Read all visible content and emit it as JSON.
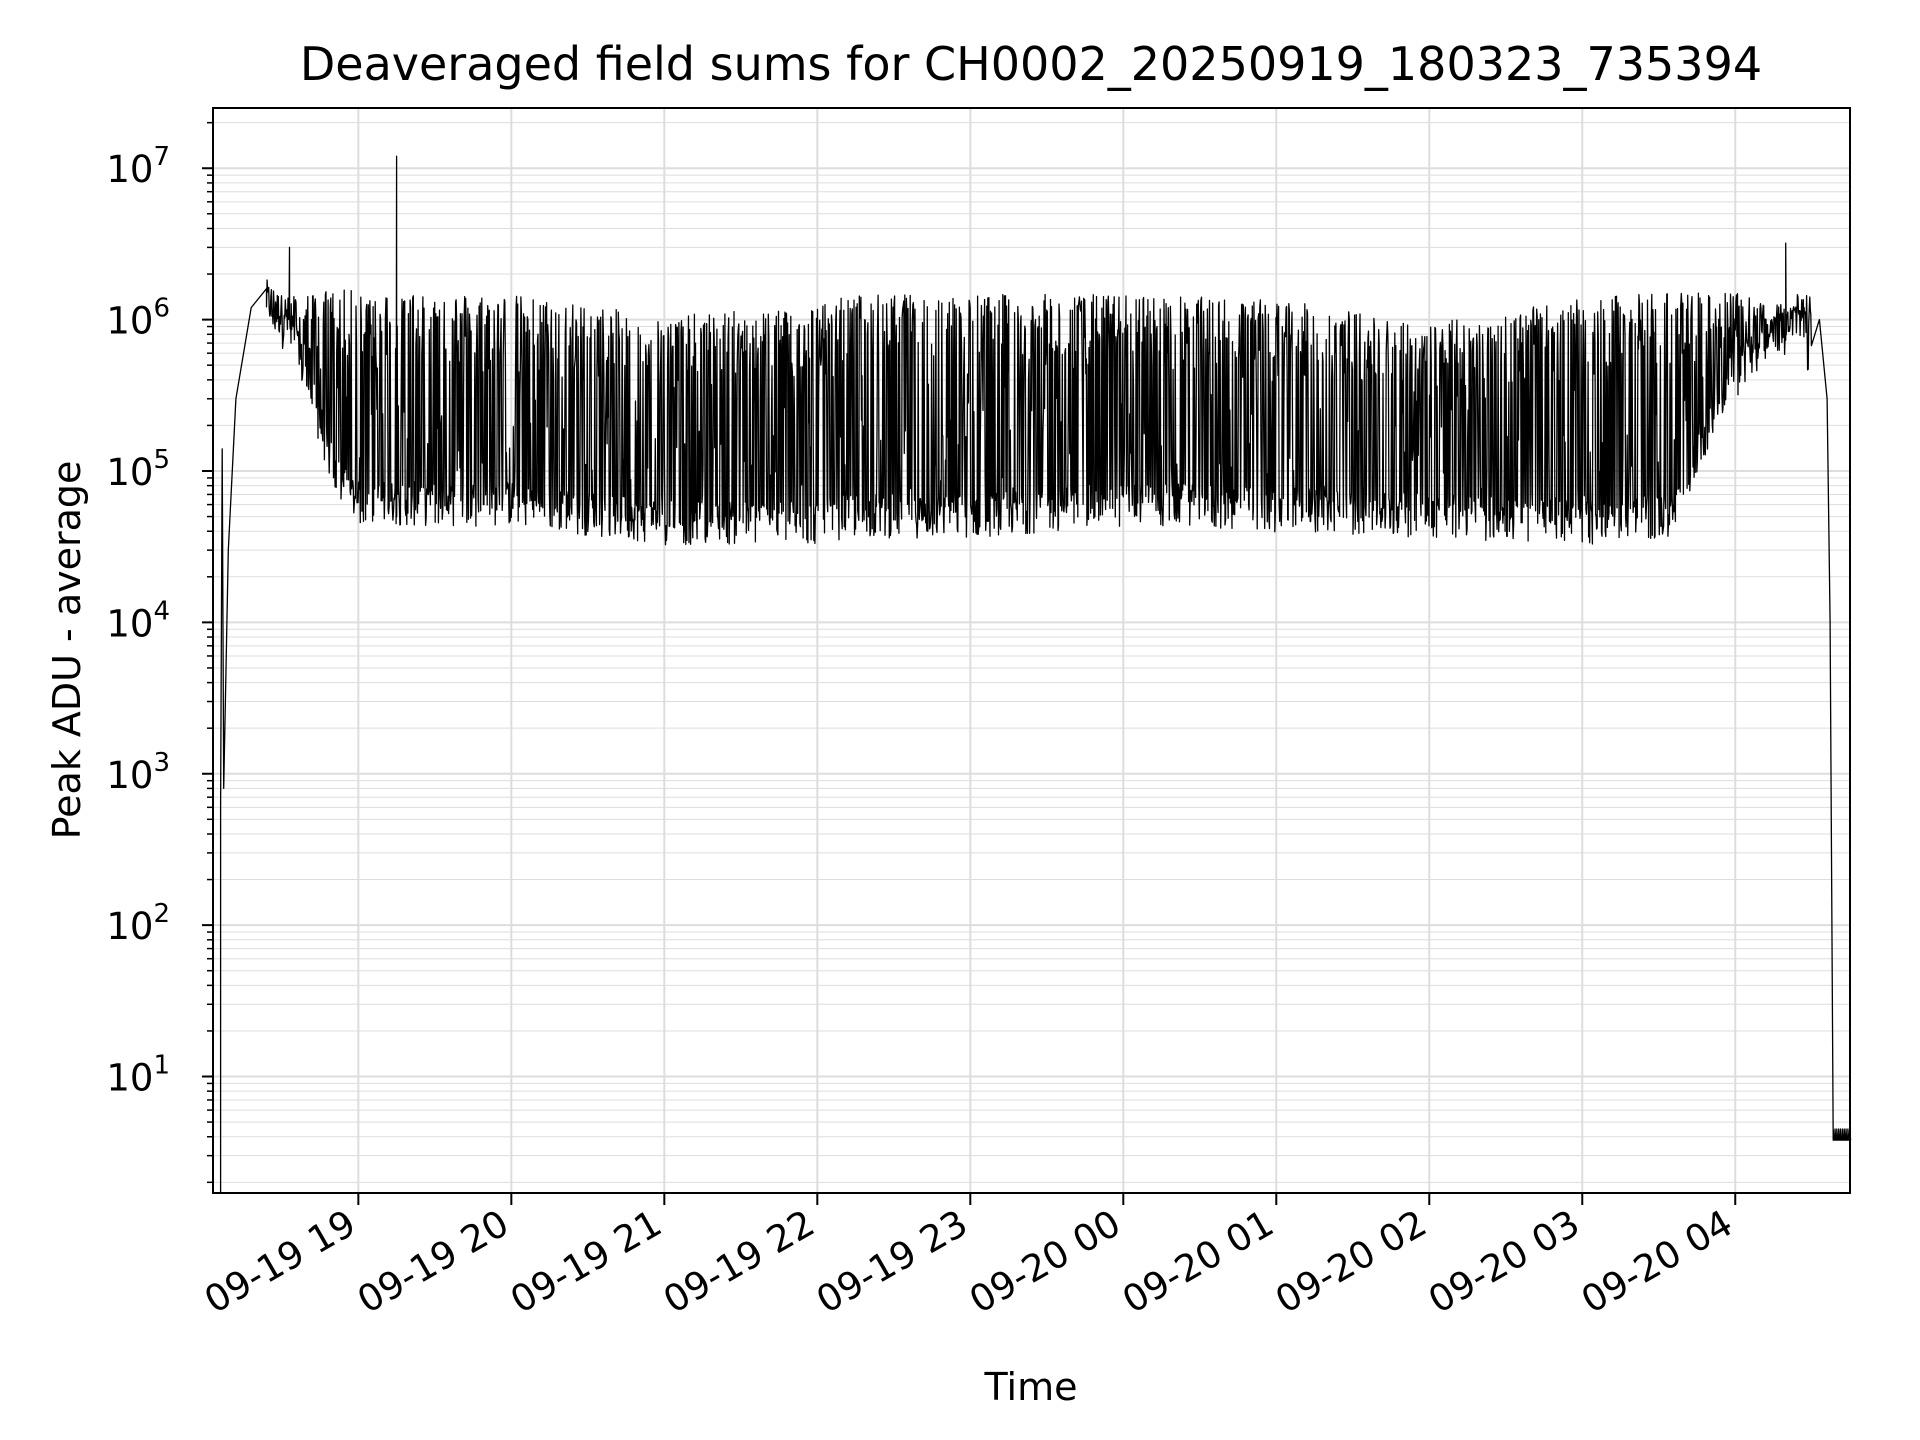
{
  "chart_data": {
    "type": "line",
    "title": "Deaveraged field sums for CH0002_20250919_180323_735394",
    "xlabel": "Time",
    "ylabel": "Peak ADU - average",
    "yscale": "log",
    "ylim": [
      1.7,
      25000000
    ],
    "xlim_hours_after_1800": [
      0.05,
      10.75
    ],
    "grid": true,
    "line_color": "#000000",
    "grid_color": "#dddddd",
    "x_ticks": [
      {
        "label": "09-19 19",
        "hours": 1
      },
      {
        "label": "09-19 20",
        "hours": 2
      },
      {
        "label": "09-19 21",
        "hours": 3
      },
      {
        "label": "09-19 22",
        "hours": 4
      },
      {
        "label": "09-19 23",
        "hours": 5
      },
      {
        "label": "09-20 00",
        "hours": 6
      },
      {
        "label": "09-20 01",
        "hours": 7
      },
      {
        "label": "09-20 02",
        "hours": 8
      },
      {
        "label": "09-20 03",
        "hours": 9
      },
      {
        "label": "09-20 04",
        "hours": 10
      }
    ],
    "y_ticks": [
      {
        "base": "10",
        "exp": "1",
        "value": 10
      },
      {
        "base": "10",
        "exp": "2",
        "value": 100
      },
      {
        "base": "10",
        "exp": "3",
        "value": 1000
      },
      {
        "base": "10",
        "exp": "4",
        "value": 10000
      },
      {
        "base": "10",
        "exp": "5",
        "value": 100000
      },
      {
        "base": "10",
        "exp": "6",
        "value": 1000000
      },
      {
        "base": "10",
        "exp": "7",
        "value": 10000000
      }
    ],
    "series": [
      {
        "name": "Peak ADU - average",
        "envelope": [
          {
            "hours": 0.4,
            "base": 1300000,
            "peak": 1600000
          },
          {
            "hours": 0.55,
            "base": 900000,
            "peak": 1400000
          },
          {
            "hours": 0.75,
            "base": 200000,
            "peak": 1500000
          },
          {
            "hours": 0.85,
            "base": 90000,
            "peak": 1500000
          },
          {
            "hours": 1.0,
            "base": 60000,
            "peak": 1500000
          },
          {
            "hours": 2.0,
            "base": 60000,
            "peak": 1400000
          },
          {
            "hours": 3.0,
            "base": 45000,
            "peak": 1000000
          },
          {
            "hours": 4.0,
            "base": 45000,
            "peak": 1200000
          },
          {
            "hours": 4.2,
            "base": 50000,
            "peak": 1400000
          },
          {
            "hours": 5.0,
            "base": 50000,
            "peak": 1400000
          },
          {
            "hours": 6.0,
            "base": 60000,
            "peak": 1400000
          },
          {
            "hours": 7.0,
            "base": 55000,
            "peak": 1300000
          },
          {
            "hours": 8.0,
            "base": 50000,
            "peak": 900000
          },
          {
            "hours": 9.0,
            "base": 45000,
            "peak": 1300000
          },
          {
            "hours": 9.6,
            "base": 50000,
            "peak": 1500000
          },
          {
            "hours": 9.9,
            "base": 300000,
            "peak": 1500000
          },
          {
            "hours": 10.35,
            "base": 1100000,
            "peak": 1200000
          },
          {
            "hours": 10.5,
            "base": 1000000,
            "peak": 1100000
          }
        ],
        "points": [
          {
            "hours": 0.1,
            "value": 1.7
          },
          {
            "hours": 0.1,
            "value": 600
          },
          {
            "hours": 0.11,
            "value": 140000
          },
          {
            "hours": 0.12,
            "value": 800
          },
          {
            "hours": 0.15,
            "value": 30000
          },
          {
            "hours": 0.2,
            "value": 300000
          },
          {
            "hours": 0.3,
            "value": 1200000
          },
          {
            "hours": 0.4,
            "value": 1600000
          },
          {
            "hours": 0.52,
            "value": 1100000
          },
          {
            "hours": 0.55,
            "value": 3000000
          },
          {
            "hours": 0.56,
            "value": 700000
          },
          {
            "hours": 1.25,
            "value": 12000000
          },
          {
            "hours": 1.26,
            "value": 70000
          },
          {
            "hours": 10.33,
            "value": 3200000
          },
          {
            "hours": 10.45,
            "value": 1200000
          },
          {
            "hours": 10.55,
            "value": 1000000
          },
          {
            "hours": 10.6,
            "value": 300000
          },
          {
            "hours": 10.62,
            "value": 10000
          },
          {
            "hours": 10.64,
            "value": 3.8
          },
          {
            "hours": 10.75,
            "value": 3.8
          }
        ]
      }
    ]
  }
}
